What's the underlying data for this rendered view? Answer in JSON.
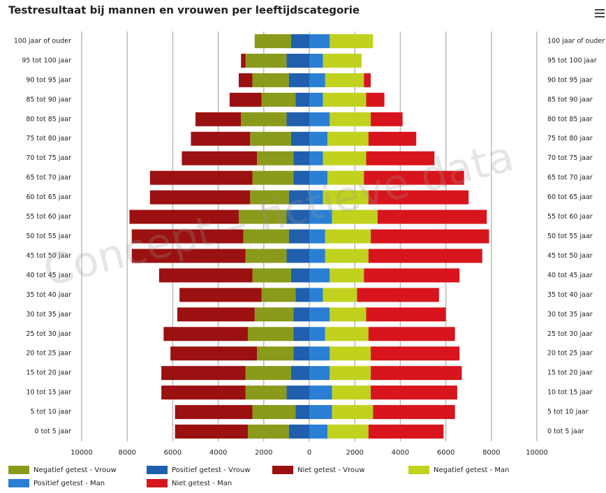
{
  "chart_data": {
    "type": "pyramid",
    "title": "Testresultaat bij mannen en vrouwen per leeftijdscategorie",
    "watermark": "Concept – fictieve data",
    "categories": [
      "100 jaar of ouder",
      "95 tot 100 jaar",
      "90 tot 95 jaar",
      "85 tot 90 jaar",
      "80 tot 85 jaar",
      "75 tot 80 jaar",
      "70 tot 75 jaar",
      "65 tot 70 jaar",
      "60 tot 65 jaar",
      "55 tot 60 jaar",
      "50 tot 55 jaar",
      "45 tot 50 jaar",
      "40 tot 45 jaar",
      "35 tot 40 jaar",
      "30 tot 35 jaar",
      "25 tot 30 jaar",
      "20 tot 25 jaar",
      "15 tot 20 jaar",
      "10 tot 15 jaar",
      "5 tot 10 jaar",
      "0 tot 5 jaar"
    ],
    "series": [
      {
        "name": "Positief getest - Vrouw",
        "color": "#1f5fad",
        "values": [
          -800,
          -1000,
          -900,
          -600,
          -1000,
          -800,
          -700,
          -700,
          -900,
          -1000,
          -900,
          -1000,
          -800,
          -600,
          -700,
          -700,
          -700,
          -800,
          -1000,
          -600,
          -900
        ]
      },
      {
        "name": "Negatief getest - Vrouw",
        "color": "#8a9a1a",
        "values": [
          -1600,
          -1800,
          -1600,
          -1500,
          -2000,
          -1800,
          -1600,
          -1800,
          -1700,
          -2100,
          -2000,
          -1800,
          -1700,
          -1500,
          -1700,
          -2000,
          -1600,
          -2000,
          -1800,
          -1900,
          -1800
        ]
      },
      {
        "name": "Niet getest - Vrouw",
        "color": "#9b1010",
        "values": [
          0,
          -200,
          -600,
          -1400,
          -2000,
          -2600,
          -3300,
          -4500,
          -4400,
          -4800,
          -4900,
          -5000,
          -4100,
          -3600,
          -3400,
          -3700,
          -3800,
          -3700,
          -3700,
          -3400,
          -3200
        ]
      },
      {
        "name": "Positief getest - Man",
        "color": "#2a7fd4",
        "values": [
          900,
          600,
          700,
          600,
          900,
          800,
          600,
          800,
          600,
          1000,
          700,
          700,
          900,
          600,
          900,
          700,
          900,
          900,
          1000,
          1000,
          800
        ]
      },
      {
        "name": "Negatief getest - Man",
        "color": "#c0d21e",
        "values": [
          1900,
          1700,
          1700,
          1900,
          1800,
          1800,
          1900,
          1600,
          2000,
          2000,
          2000,
          1900,
          1500,
          1500,
          1600,
          1900,
          1800,
          1800,
          1700,
          1800,
          1800
        ]
      },
      {
        "name": "Niet getest - Man",
        "color": "#d8141c",
        "values": [
          0,
          0,
          300,
          800,
          1400,
          2100,
          3000,
          4400,
          4400,
          4800,
          5200,
          5000,
          4200,
          3600,
          3500,
          3800,
          3900,
          4000,
          3800,
          3600,
          3300
        ]
      }
    ],
    "xlim": [
      -10000,
      10000
    ],
    "xticks": [
      {
        "value": -10000,
        "label": "10000"
      },
      {
        "value": -8000,
        "label": "8000"
      },
      {
        "value": -6000,
        "label": "6000"
      },
      {
        "value": -4000,
        "label": "4000"
      },
      {
        "value": -2000,
        "label": "2000"
      },
      0,
      2000,
      4000,
      6000,
      8000,
      10000
    ],
    "grid": true
  }
}
